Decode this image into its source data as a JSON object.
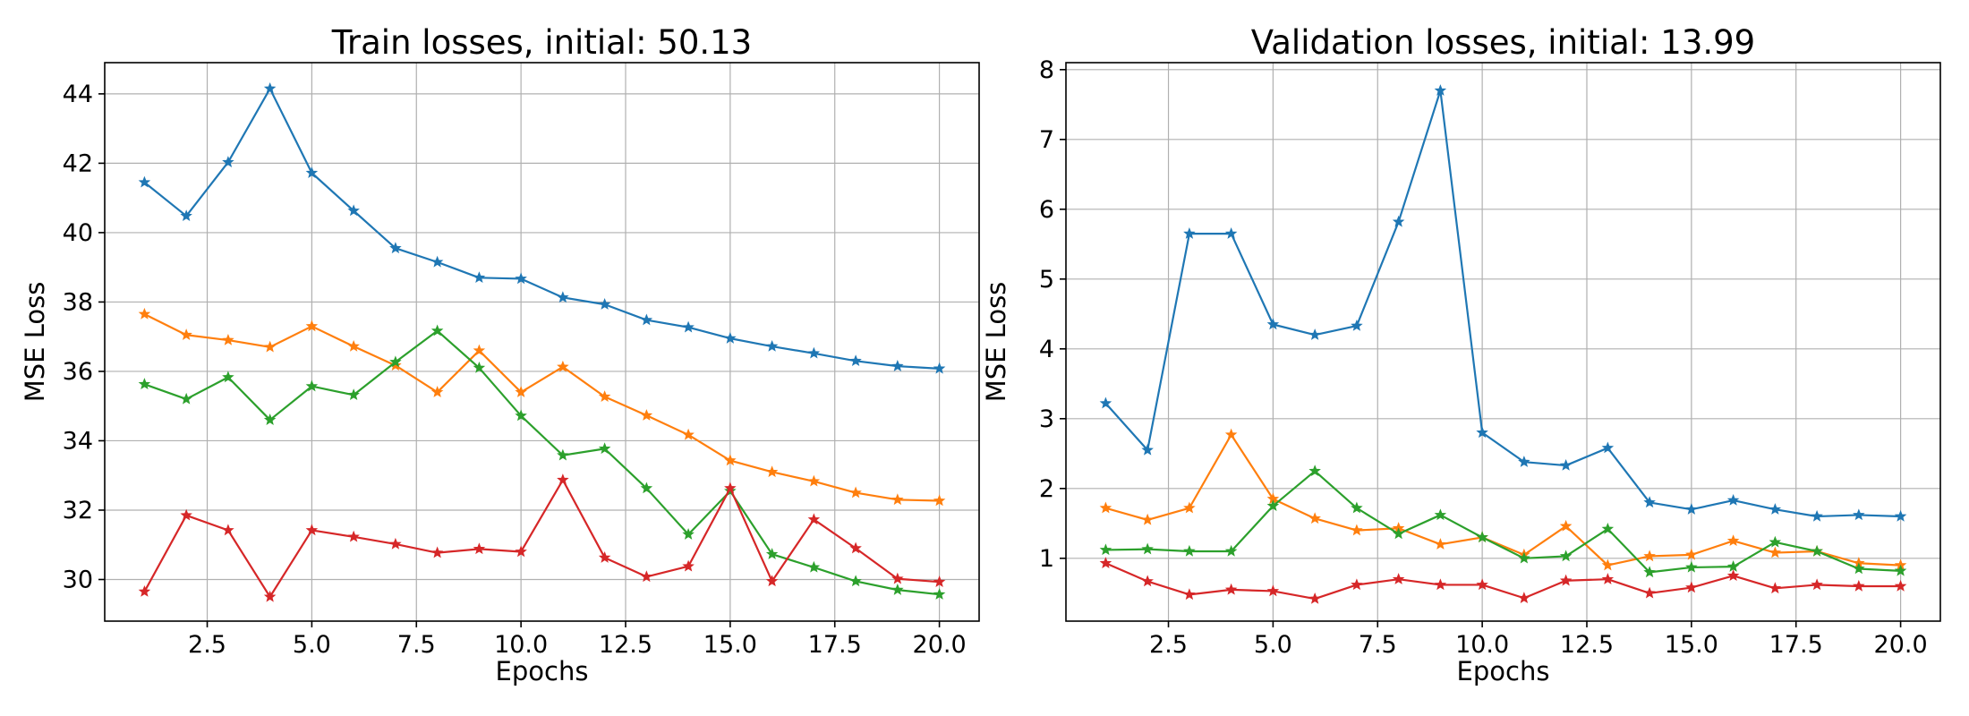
{
  "chart_data": [
    {
      "type": "line",
      "title": "Train losses, initial: 50.13",
      "xlabel": "Epochs",
      "ylabel": "MSE Loss",
      "x": [
        1,
        2,
        3,
        4,
        5,
        6,
        7,
        8,
        9,
        10,
        11,
        12,
        13,
        14,
        15,
        16,
        17,
        18,
        19,
        20
      ],
      "xlim": [
        0.05,
        20.95
      ],
      "ylim": [
        28.8,
        44.9
      ],
      "xticks": [
        2.5,
        5.0,
        7.5,
        10.0,
        12.5,
        15.0,
        17.5,
        20.0
      ],
      "xtick_labels": [
        "2.5",
        "5.0",
        "7.5",
        "10.0",
        "12.5",
        "15.0",
        "17.5",
        "20.0"
      ],
      "yticks": [
        30,
        32,
        34,
        36,
        38,
        40,
        42,
        44
      ],
      "ytick_labels": [
        "30",
        "32",
        "34",
        "36",
        "38",
        "40",
        "42",
        "44"
      ],
      "grid": true,
      "marker": "star",
      "series": [
        {
          "color": "#1f77b4",
          "values": [
            41.45,
            40.48,
            42.03,
            44.15,
            41.72,
            40.63,
            39.55,
            39.15,
            38.7,
            38.67,
            38.13,
            37.93,
            37.48,
            37.27,
            36.95,
            36.72,
            36.52,
            36.3,
            36.15,
            36.08
          ]
        },
        {
          "color": "#ff7f0e",
          "values": [
            37.65,
            37.05,
            36.9,
            36.7,
            37.3,
            36.72,
            36.17,
            35.4,
            36.6,
            35.4,
            36.13,
            35.27,
            34.73,
            34.17,
            33.43,
            33.1,
            32.83,
            32.5,
            32.3,
            32.27
          ]
        },
        {
          "color": "#2ca02c",
          "values": [
            35.63,
            35.2,
            35.83,
            34.6,
            35.57,
            35.32,
            36.27,
            37.17,
            36.1,
            34.72,
            33.58,
            33.77,
            32.63,
            31.3,
            32.55,
            30.73,
            30.35,
            29.95,
            29.7,
            29.57
          ]
        },
        {
          "color": "#d62728",
          "values": [
            29.65,
            31.85,
            31.42,
            29.5,
            31.42,
            31.23,
            31.02,
            30.77,
            30.88,
            30.8,
            32.87,
            30.63,
            30.08,
            30.38,
            32.63,
            29.95,
            31.73,
            30.9,
            30.02,
            29.93
          ]
        }
      ]
    },
    {
      "type": "line",
      "title": "Validation losses, initial: 13.99",
      "xlabel": "Epochs",
      "ylabel": "MSE Loss",
      "x": [
        1,
        2,
        3,
        4,
        5,
        6,
        7,
        8,
        9,
        10,
        11,
        12,
        13,
        14,
        15,
        16,
        17,
        18,
        19,
        20
      ],
      "xlim": [
        0.05,
        20.95
      ],
      "ylim": [
        0.1,
        8.1
      ],
      "xticks": [
        2.5,
        5.0,
        7.5,
        10.0,
        12.5,
        15.0,
        17.5,
        20.0
      ],
      "xtick_labels": [
        "2.5",
        "5.0",
        "7.5",
        "10.0",
        "12.5",
        "15.0",
        "17.5",
        "20.0"
      ],
      "yticks": [
        1,
        2,
        3,
        4,
        5,
        6,
        7,
        8
      ],
      "ytick_labels": [
        "1",
        "2",
        "3",
        "4",
        "5",
        "6",
        "7",
        "8"
      ],
      "grid": true,
      "marker": "star",
      "series": [
        {
          "color": "#1f77b4",
          "values": [
            3.22,
            2.55,
            5.65,
            5.65,
            4.35,
            4.2,
            4.33,
            5.82,
            7.7,
            2.8,
            2.38,
            2.33,
            2.58,
            1.8,
            1.7,
            1.83,
            1.7,
            1.6,
            1.62,
            1.6
          ]
        },
        {
          "color": "#ff7f0e",
          "values": [
            1.72,
            1.55,
            1.72,
            2.77,
            1.85,
            1.57,
            1.4,
            1.43,
            1.2,
            1.3,
            1.05,
            1.46,
            0.9,
            1.03,
            1.05,
            1.25,
            1.08,
            1.1,
            0.93,
            0.9
          ]
        },
        {
          "color": "#2ca02c",
          "values": [
            1.12,
            1.13,
            1.1,
            1.1,
            1.75,
            2.25,
            1.72,
            1.35,
            1.62,
            1.3,
            1.0,
            1.03,
            1.42,
            0.8,
            0.87,
            0.88,
            1.23,
            1.1,
            0.85,
            0.82
          ]
        },
        {
          "color": "#d62728",
          "values": [
            0.93,
            0.67,
            0.48,
            0.55,
            0.53,
            0.42,
            0.62,
            0.7,
            0.62,
            0.62,
            0.43,
            0.68,
            0.7,
            0.5,
            0.58,
            0.75,
            0.57,
            0.62,
            0.6,
            0.6
          ]
        }
      ]
    }
  ]
}
